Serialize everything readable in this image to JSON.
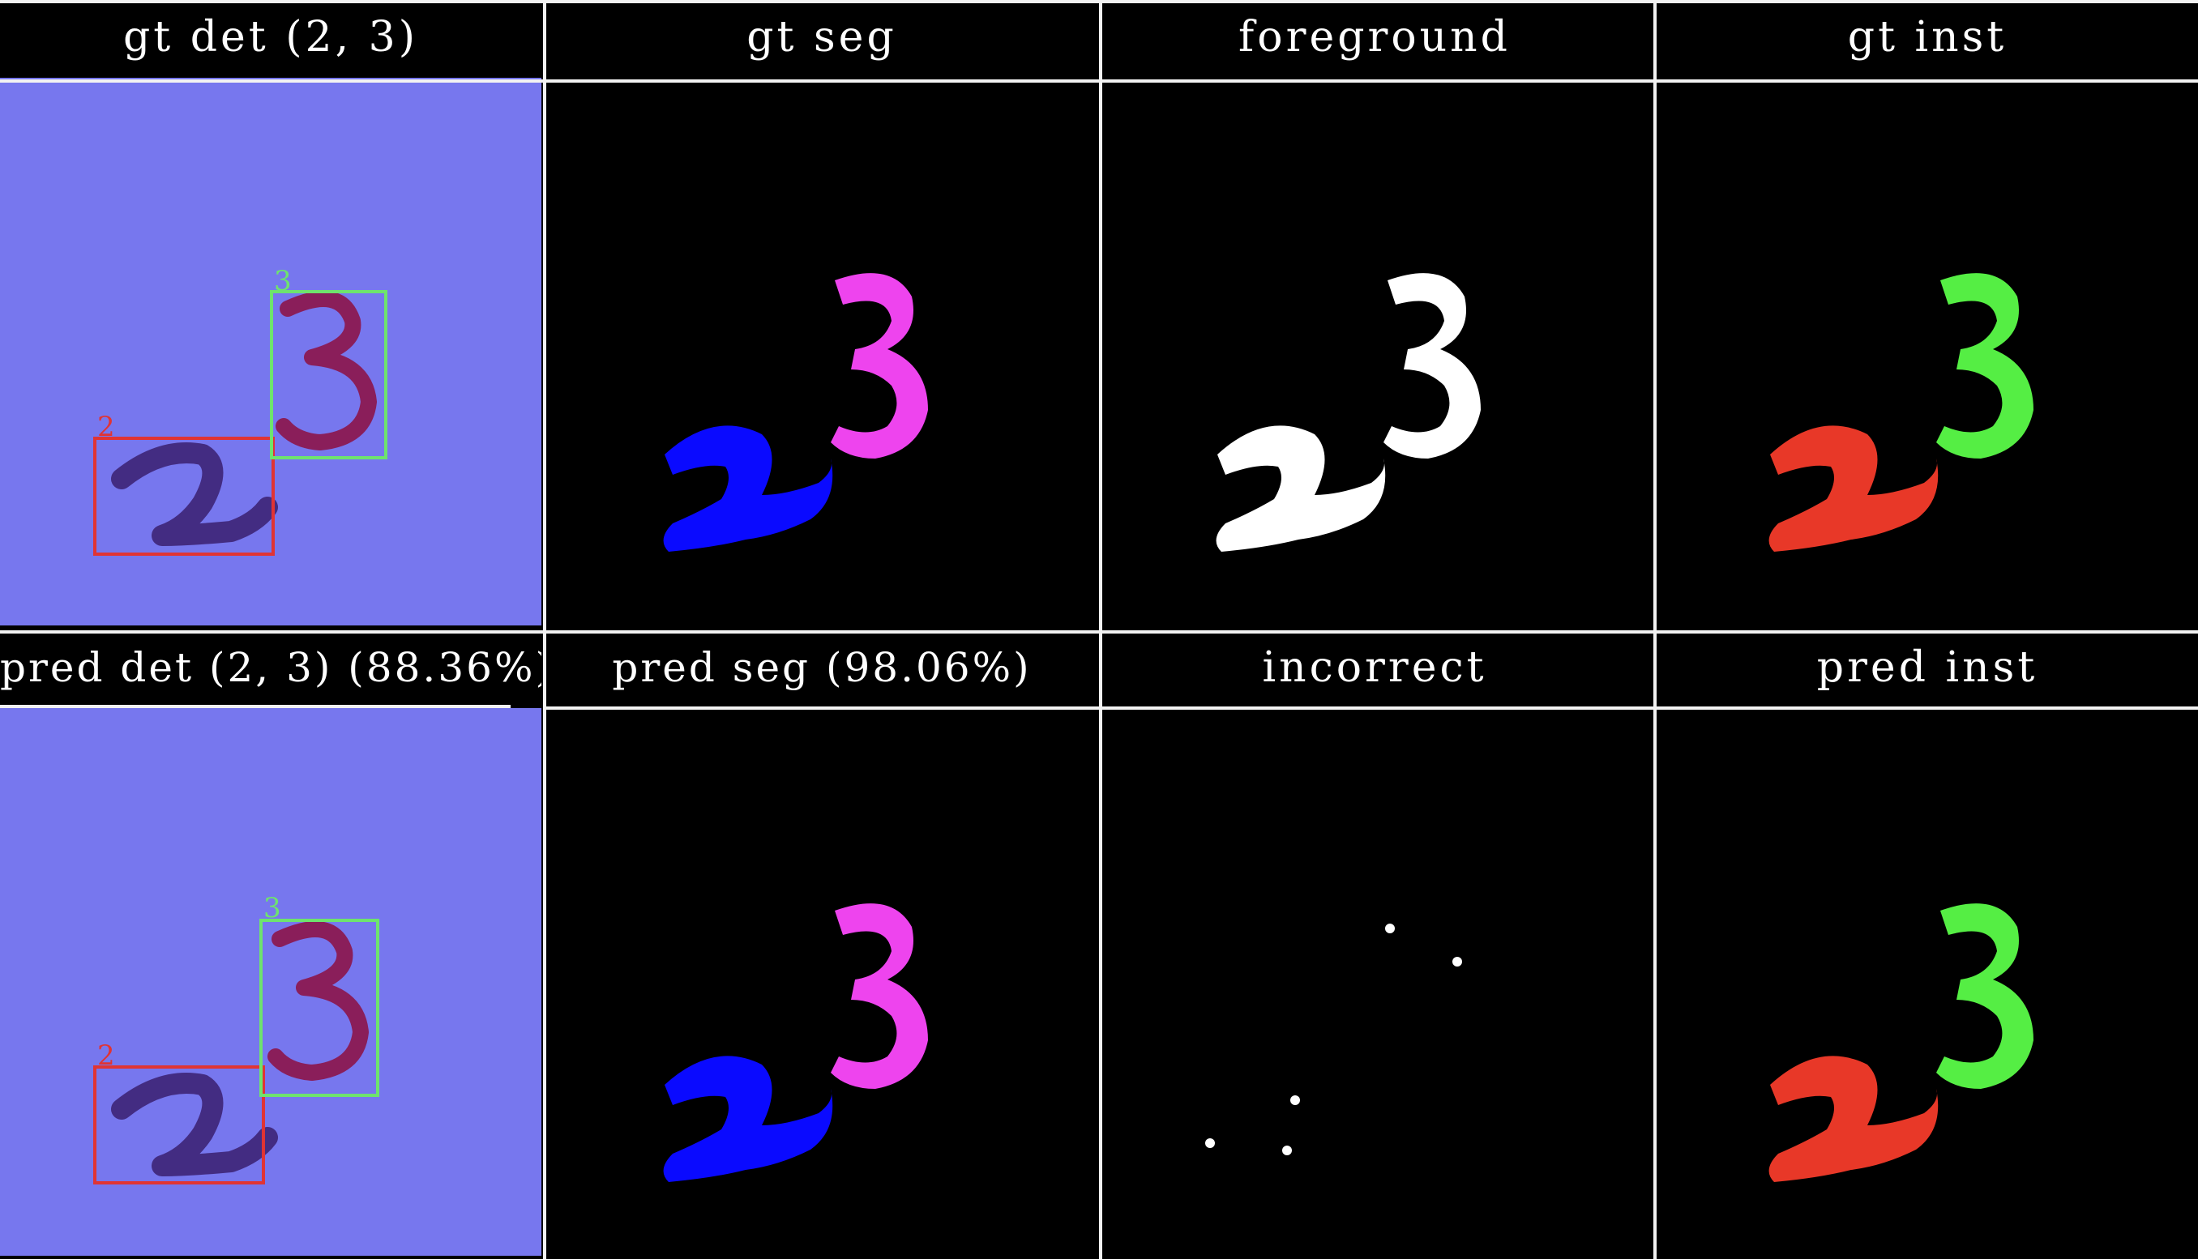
{
  "panels": [
    {
      "key": "gt_det",
      "title": "gt det (2, 3)",
      "labels": [
        "2",
        "3"
      ]
    },
    {
      "key": "gt_seg",
      "title": "gt seg"
    },
    {
      "key": "foreground",
      "title": "foreground"
    },
    {
      "key": "gt_inst",
      "title": "gt inst"
    },
    {
      "key": "pred_det",
      "title": "pred det (2, 3) (88.36%)",
      "labels": [
        "2",
        "3"
      ]
    },
    {
      "key": "pred_seg",
      "title": "pred seg (98.06%)"
    },
    {
      "key": "incorrect",
      "title": "incorrect"
    },
    {
      "key": "pred_inst",
      "title": "pred inst"
    }
  ],
  "colors": {
    "det_background": "#7777ee",
    "box_digit_2": "#e03434",
    "box_digit_3": "#6ee36e",
    "seg_digit_2": "#0a0aff",
    "seg_digit_3": "#ee44ee",
    "fg": "#ffffff",
    "inst_digit_2": "#e83828",
    "inst_digit_3": "#55ee44",
    "panel_background": "#000000",
    "divider": "#f2f2f2"
  }
}
